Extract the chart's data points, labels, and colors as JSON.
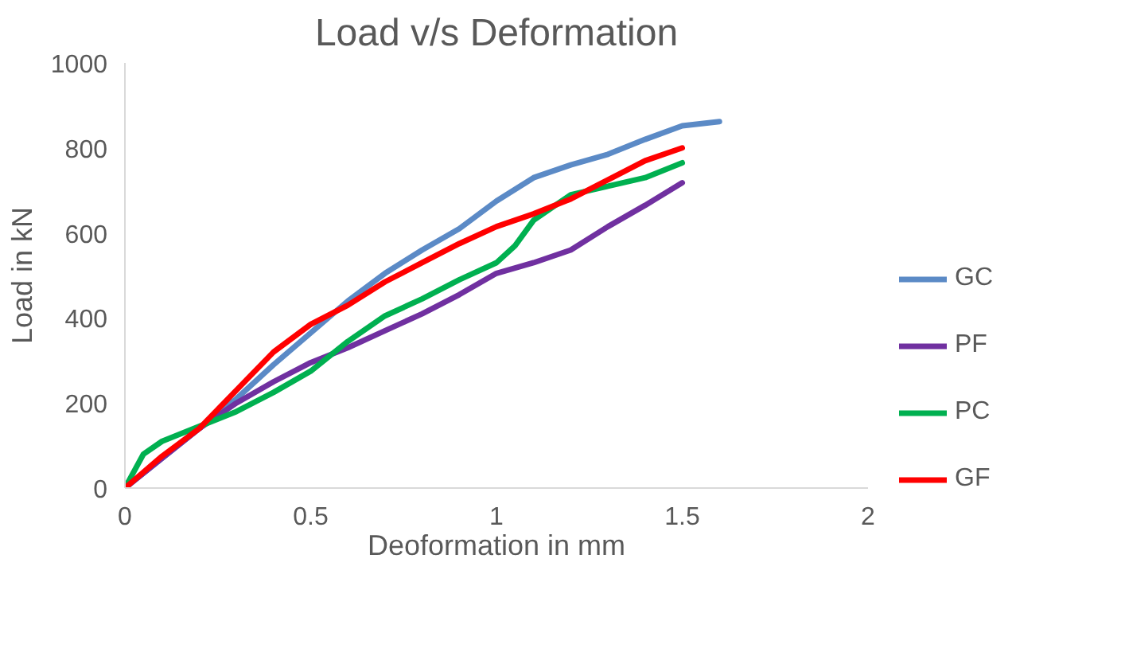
{
  "chart_data": {
    "type": "line",
    "title": "Load v/s Deformation",
    "xlabel": "Deoformation in mm",
    "ylabel": "Load in kN",
    "xlim": [
      0,
      2
    ],
    "xticks": [
      0,
      0.5,
      1,
      1.5,
      2
    ],
    "ylim": [
      0,
      1000
    ],
    "yticks": [
      0,
      200,
      400,
      600,
      800,
      1000
    ],
    "grid": false,
    "legend": "right",
    "marker": "none",
    "line_style": "solid",
    "series": [
      {
        "name": "GC",
        "color": "#5b8ac6",
        "x": [
          0,
          0.1,
          0.2,
          0.3,
          0.4,
          0.5,
          0.6,
          0.7,
          0.8,
          0.9,
          1.0,
          1.1,
          1.2,
          1.3,
          1.4,
          1.5,
          1.6
        ],
        "values": [
          0,
          70,
          140,
          210,
          290,
          365,
          440,
          505,
          560,
          610,
          675,
          730,
          760,
          785,
          820,
          852,
          862
        ]
      },
      {
        "name": "PF",
        "color": "#7030a0",
        "x": [
          0,
          0.1,
          0.2,
          0.3,
          0.4,
          0.5,
          0.6,
          0.7,
          0.8,
          0.9,
          1.0,
          1.1,
          1.2,
          1.3,
          1.4,
          1.5
        ],
        "values": [
          0,
          70,
          140,
          200,
          250,
          295,
          330,
          370,
          410,
          455,
          505,
          530,
          560,
          615,
          665,
          718
        ]
      },
      {
        "name": "PC",
        "color": "#00b050",
        "x": [
          0,
          0.05,
          0.1,
          0.2,
          0.3,
          0.4,
          0.5,
          0.6,
          0.7,
          0.8,
          0.9,
          1.0,
          1.05,
          1.1,
          1.2,
          1.3,
          1.4,
          1.5
        ],
        "values": [
          0,
          80,
          110,
          145,
          180,
          225,
          275,
          345,
          405,
          445,
          490,
          530,
          570,
          630,
          690,
          710,
          730,
          765
        ]
      },
      {
        "name": "GF",
        "color": "#ff0000",
        "x": [
          0,
          0.1,
          0.2,
          0.3,
          0.4,
          0.5,
          0.6,
          0.7,
          0.8,
          0.9,
          1.0,
          1.1,
          1.2,
          1.3,
          1.4,
          1.5
        ],
        "values": [
          0,
          75,
          140,
          230,
          320,
          385,
          430,
          485,
          530,
          575,
          615,
          645,
          680,
          725,
          770,
          800
        ]
      }
    ]
  }
}
